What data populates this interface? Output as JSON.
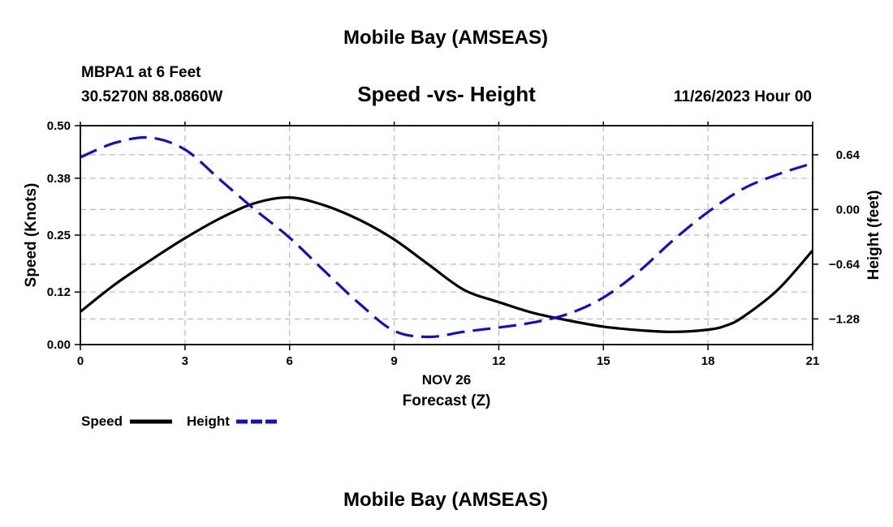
{
  "header": {
    "title": "Mobile Bay (AMSEAS)",
    "station": "MBPA1 at 6 Feet",
    "coords": "30.5270N  88.0860W",
    "subtitle": "Speed -vs- Height",
    "datetime": "11/26/2023 Hour 00"
  },
  "legend": {
    "speed_label": "Speed",
    "height_label": "Height"
  },
  "footer": {
    "title": "Mobile Bay (AMSEAS)"
  },
  "colors": {
    "speed": "#000000",
    "height": "#1010cc",
    "grid": "#bbbbbb"
  },
  "chart_data": {
    "type": "line",
    "title": "Speed -vs- Height",
    "xlabel": "Forecast (Z)",
    "xlabel_date": "NOV 26",
    "ylabel": "Speed (Knots)",
    "y2label": "Height (feet)",
    "xlim": [
      0,
      21
    ],
    "ylim": [
      0,
      0.5
    ],
    "y2lim": [
      -1.58,
      0.98
    ],
    "xticks": [
      0,
      3,
      6,
      9,
      12,
      15,
      18,
      21
    ],
    "yticks": [
      0.0,
      0.12,
      0.25,
      0.38,
      0.5
    ],
    "ytick_labels": [
      "0.00",
      "0.12",
      "0.25",
      "0.38",
      "0.50"
    ],
    "y2ticks": [
      0.64,
      0.0,
      -0.64,
      -1.28
    ],
    "y2tick_labels": [
      "0.64",
      "0.00",
      "−0.64",
      "−1.28"
    ],
    "grid": true,
    "legend_position": "bottom-left",
    "series": [
      {
        "name": "Speed",
        "axis": "left",
        "style": "solid",
        "x": [
          0,
          1,
          2,
          3,
          4,
          5,
          6,
          7,
          8,
          9,
          10,
          11,
          12,
          13,
          14,
          15,
          16,
          17,
          18,
          18.5,
          19,
          20,
          21
        ],
        "values": [
          0.075,
          0.138,
          0.192,
          0.243,
          0.288,
          0.323,
          0.336,
          0.318,
          0.285,
          0.24,
          0.182,
          0.125,
          0.097,
          0.072,
          0.055,
          0.041,
          0.033,
          0.029,
          0.034,
          0.043,
          0.063,
          0.125,
          0.215
        ]
      },
      {
        "name": "Height",
        "axis": "right",
        "style": "dashed",
        "x": [
          0,
          1,
          2,
          3,
          4,
          5,
          6,
          7,
          8,
          9,
          10,
          11,
          12,
          13,
          14,
          15,
          16,
          17,
          18,
          19,
          20,
          21
        ],
        "values": [
          0.61,
          0.78,
          0.84,
          0.7,
          0.35,
          0.0,
          -0.33,
          -0.72,
          -1.1,
          -1.42,
          -1.49,
          -1.43,
          -1.38,
          -1.32,
          -1.22,
          -1.03,
          -0.73,
          -0.36,
          -0.03,
          0.24,
          0.41,
          0.54
        ]
      }
    ]
  }
}
